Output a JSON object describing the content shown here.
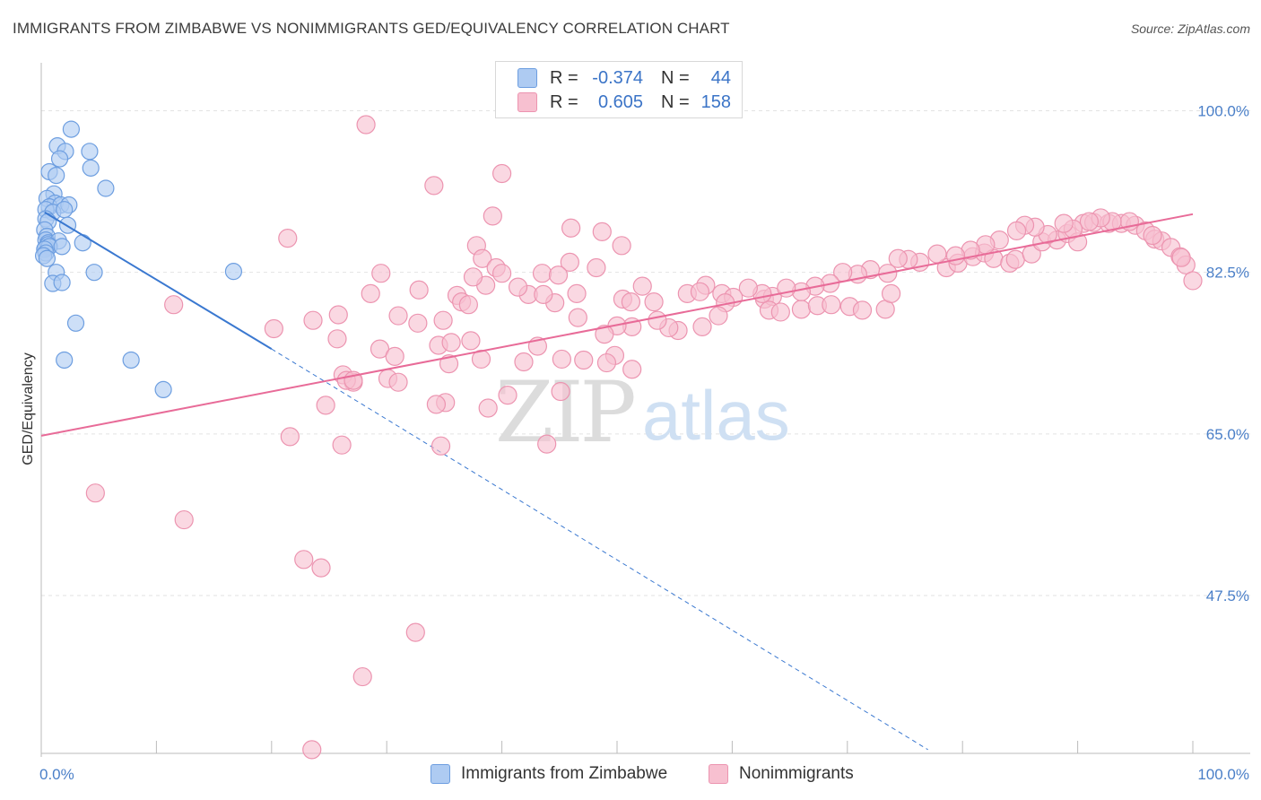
{
  "title": "IMMIGRANTS FROM ZIMBABWE VS NONIMMIGRANTS GED/EQUIVALENCY CORRELATION CHART",
  "source": "Source: ZipAtlas.com",
  "watermark": {
    "zip": "ZIP",
    "atlas": "atlas"
  },
  "legend": {
    "r_label": "R =",
    "n_label": "N =",
    "rows": [
      {
        "r": "-0.374",
        "n": "44",
        "fill": "#aecbf2",
        "stroke": "#6d9ee0"
      },
      {
        "r": "0.605",
        "n": "158",
        "fill": "#f7c0d0",
        "stroke": "#ec94b0"
      }
    ]
  },
  "bottom_legend": [
    {
      "label": "Immigrants from Zimbabwe",
      "fill": "#aecbf2",
      "stroke": "#6d9ee0"
    },
    {
      "label": "Nonimmigrants",
      "fill": "#f7c0d0",
      "stroke": "#ec94b0"
    }
  ],
  "chart_data": {
    "type": "scatter",
    "title": "IMMIGRANTS FROM ZIMBABWE VS NONIMMIGRANTS GED/EQUIVALENCY CORRELATION CHART",
    "xlabel": "",
    "ylabel": "GED/Equivalency",
    "xlim": [
      0,
      100
    ],
    "ylim": [
      30.4,
      105.2
    ],
    "x_tick_labels": [
      "0.0%",
      "100.0%"
    ],
    "y_ticks": [
      47.5,
      65.0,
      82.5,
      100.0
    ],
    "y_tick_labels": [
      "47.5%",
      "65.0%",
      "82.5%",
      "100.0%"
    ],
    "grid": true,
    "series": [
      {
        "name": "Immigrants from Zimbabwe",
        "color": "#6d9ee0",
        "fill": "#aecbf2",
        "trend": {
          "x0": 0.3,
          "y0": 89.0,
          "x1": 20.0,
          "y1": 74.2,
          "dash_to_x": 77.0,
          "dash_to_y": 30.8,
          "color": "#3a78d0"
        },
        "points": [
          [
            2.6,
            98.0
          ],
          [
            1.4,
            96.2
          ],
          [
            2.1,
            95.6
          ],
          [
            4.2,
            95.6
          ],
          [
            1.6,
            94.8
          ],
          [
            0.7,
            93.4
          ],
          [
            4.3,
            93.8
          ],
          [
            1.3,
            93.0
          ],
          [
            5.6,
            91.6
          ],
          [
            1.1,
            91.0
          ],
          [
            0.5,
            90.5
          ],
          [
            1.2,
            90.0
          ],
          [
            0.7,
            89.6
          ],
          [
            1.7,
            89.8
          ],
          [
            2.4,
            89.8
          ],
          [
            0.4,
            89.3
          ],
          [
            1.0,
            89.0
          ],
          [
            2.0,
            89.3
          ],
          [
            0.4,
            88.3
          ],
          [
            0.6,
            88.0
          ],
          [
            2.3,
            87.6
          ],
          [
            0.3,
            87.1
          ],
          [
            0.5,
            86.4
          ],
          [
            0.4,
            86.0
          ],
          [
            0.6,
            85.7
          ],
          [
            1.5,
            85.9
          ],
          [
            3.6,
            85.7
          ],
          [
            0.4,
            85.2
          ],
          [
            0.6,
            85.5
          ],
          [
            0.7,
            85.3
          ],
          [
            0.3,
            85.0
          ],
          [
            0.4,
            84.6
          ],
          [
            0.2,
            84.3
          ],
          [
            1.3,
            82.5
          ],
          [
            4.6,
            82.5
          ],
          [
            16.7,
            82.6
          ],
          [
            1.0,
            81.3
          ],
          [
            1.8,
            81.4
          ],
          [
            3.0,
            77.0
          ],
          [
            2.0,
            73.0
          ],
          [
            7.8,
            73.0
          ],
          [
            10.6,
            69.8
          ],
          [
            0.5,
            84.0
          ],
          [
            1.8,
            85.3
          ]
        ]
      },
      {
        "name": "Nonimmigrants",
        "color": "#ec94b0",
        "fill": "#f7c0d0",
        "trend": {
          "x0": 0.0,
          "y0": 64.8,
          "x1": 100.0,
          "y1": 88.8,
          "color": "#e86b98"
        },
        "points": [
          [
            28.2,
            98.5
          ],
          [
            40.0,
            93.2
          ],
          [
            34.1,
            91.9
          ],
          [
            39.2,
            88.6
          ],
          [
            46.0,
            87.3
          ],
          [
            48.7,
            86.9
          ],
          [
            21.4,
            86.2
          ],
          [
            37.8,
            85.4
          ],
          [
            50.4,
            85.4
          ],
          [
            38.3,
            84.0
          ],
          [
            45.9,
            83.6
          ],
          [
            39.5,
            83.0
          ],
          [
            43.5,
            82.4
          ],
          [
            29.5,
            82.4
          ],
          [
            48.2,
            83.0
          ],
          [
            44.9,
            82.2
          ],
          [
            52.2,
            81.0
          ],
          [
            57.7,
            81.1
          ],
          [
            46.5,
            80.2
          ],
          [
            36.1,
            80.0
          ],
          [
            28.6,
            80.2
          ],
          [
            42.3,
            80.1
          ],
          [
            36.5,
            79.3
          ],
          [
            37.1,
            79.0
          ],
          [
            50.5,
            79.6
          ],
          [
            51.2,
            79.3
          ],
          [
            53.2,
            79.3
          ],
          [
            56.1,
            80.2
          ],
          [
            57.2,
            80.4
          ],
          [
            59.1,
            80.2
          ],
          [
            62.8,
            79.6
          ],
          [
            63.5,
            79.9
          ],
          [
            63.2,
            78.4
          ],
          [
            64.2,
            78.2
          ],
          [
            66.0,
            78.5
          ],
          [
            67.4,
            78.9
          ],
          [
            68.6,
            79.0
          ],
          [
            70.2,
            78.8
          ],
          [
            71.3,
            78.4
          ],
          [
            73.3,
            78.5
          ],
          [
            73.8,
            80.2
          ],
          [
            78.6,
            83.0
          ],
          [
            79.6,
            83.5
          ],
          [
            80.9,
            84.2
          ],
          [
            81.9,
            84.6
          ],
          [
            82.7,
            84.0
          ],
          [
            84.1,
            83.5
          ],
          [
            84.6,
            83.9
          ],
          [
            86.0,
            84.5
          ],
          [
            86.9,
            85.8
          ],
          [
            88.2,
            86.0
          ],
          [
            89.1,
            86.7
          ],
          [
            90.0,
            85.8
          ],
          [
            90.5,
            87.8
          ],
          [
            91.4,
            87.9
          ],
          [
            92.7,
            87.8
          ],
          [
            93.8,
            87.8
          ],
          [
            95.0,
            87.6
          ],
          [
            95.9,
            87.0
          ],
          [
            96.7,
            86.1
          ],
          [
            97.3,
            85.9
          ],
          [
            98.1,
            85.2
          ],
          [
            98.9,
            84.2
          ],
          [
            99.4,
            83.3
          ],
          [
            100.0,
            81.6
          ],
          [
            99.0,
            84.1
          ],
          [
            96.5,
            86.5
          ],
          [
            94.5,
            88.0
          ],
          [
            93.0,
            88.0
          ],
          [
            92.0,
            88.4
          ],
          [
            91.0,
            88.0
          ],
          [
            89.6,
            87.2
          ],
          [
            88.8,
            87.8
          ],
          [
            87.4,
            86.6
          ],
          [
            86.3,
            87.4
          ],
          [
            85.4,
            87.6
          ],
          [
            84.7,
            87.0
          ],
          [
            83.2,
            86.0
          ],
          [
            82.0,
            85.5
          ],
          [
            80.7,
            84.9
          ],
          [
            79.4,
            84.3
          ],
          [
            77.8,
            84.5
          ],
          [
            76.3,
            83.6
          ],
          [
            75.3,
            83.9
          ],
          [
            74.4,
            84.0
          ],
          [
            73.5,
            82.4
          ],
          [
            72.0,
            82.8
          ],
          [
            70.9,
            82.3
          ],
          [
            69.6,
            82.5
          ],
          [
            68.5,
            81.3
          ],
          [
            67.2,
            81.0
          ],
          [
            66.0,
            80.4
          ],
          [
            64.7,
            80.8
          ],
          [
            62.6,
            80.2
          ],
          [
            61.4,
            80.8
          ],
          [
            60.1,
            79.8
          ],
          [
            59.4,
            79.2
          ],
          [
            58.8,
            77.8
          ],
          [
            57.4,
            76.6
          ],
          [
            55.3,
            76.2
          ],
          [
            54.5,
            76.5
          ],
          [
            53.5,
            77.3
          ],
          [
            51.3,
            76.6
          ],
          [
            50.0,
            76.7
          ],
          [
            48.9,
            75.8
          ],
          [
            49.8,
            73.5
          ],
          [
            46.6,
            77.6
          ],
          [
            44.6,
            79.2
          ],
          [
            43.6,
            80.1
          ],
          [
            41.4,
            80.9
          ],
          [
            40.0,
            82.4
          ],
          [
            38.6,
            81.1
          ],
          [
            37.5,
            82.0
          ],
          [
            32.8,
            80.6
          ],
          [
            32.7,
            77.0
          ],
          [
            34.5,
            74.6
          ],
          [
            34.9,
            77.3
          ],
          [
            31.0,
            77.8
          ],
          [
            25.8,
            77.9
          ],
          [
            23.6,
            77.3
          ],
          [
            20.2,
            76.4
          ],
          [
            25.7,
            75.3
          ],
          [
            35.6,
            74.9
          ],
          [
            37.3,
            75.1
          ],
          [
            38.2,
            73.1
          ],
          [
            35.4,
            72.6
          ],
          [
            45.2,
            73.1
          ],
          [
            47.1,
            73.0
          ],
          [
            49.1,
            72.7
          ],
          [
            51.3,
            72.0
          ],
          [
            41.9,
            72.8
          ],
          [
            43.1,
            74.5
          ],
          [
            29.4,
            74.2
          ],
          [
            30.7,
            73.4
          ],
          [
            27.1,
            70.6
          ],
          [
            26.2,
            71.4
          ],
          [
            30.1,
            71.0
          ],
          [
            26.5,
            70.8
          ],
          [
            27.1,
            70.8
          ],
          [
            31.0,
            70.6
          ],
          [
            45.1,
            69.6
          ],
          [
            40.5,
            69.2
          ],
          [
            35.1,
            68.4
          ],
          [
            24.7,
            68.1
          ],
          [
            34.3,
            68.2
          ],
          [
            38.8,
            67.8
          ],
          [
            21.6,
            64.7
          ],
          [
            43.9,
            63.9
          ],
          [
            26.1,
            63.8
          ],
          [
            34.7,
            63.7
          ],
          [
            4.7,
            58.6
          ],
          [
            12.4,
            55.7
          ],
          [
            22.8,
            51.4
          ],
          [
            24.3,
            50.5
          ],
          [
            32.5,
            43.5
          ],
          [
            27.9,
            38.7
          ],
          [
            23.5,
            30.8
          ],
          [
            11.5,
            79.0
          ]
        ]
      }
    ]
  }
}
